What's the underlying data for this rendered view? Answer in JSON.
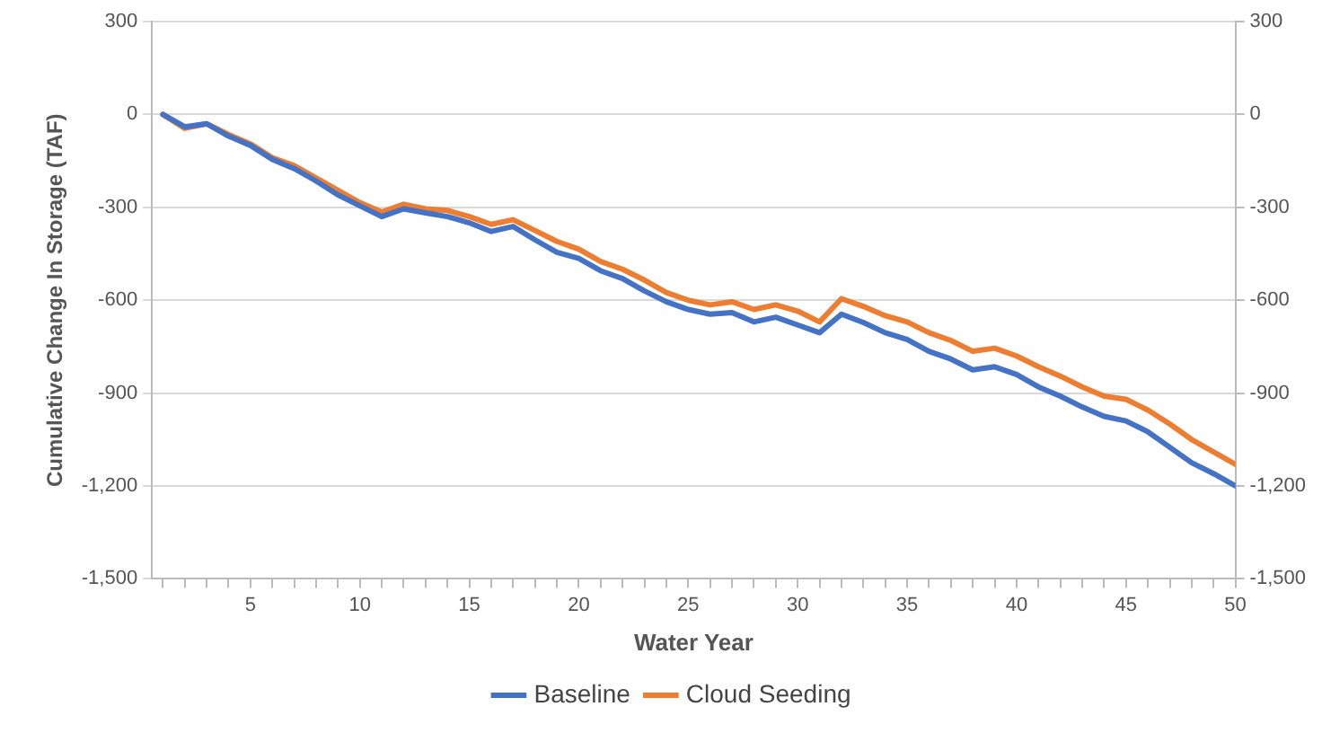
{
  "chart_data": {
    "type": "line",
    "xlabel": "Water Year",
    "ylabel": "Cumulative Change In Storage (TAF)",
    "x": [
      1,
      2,
      3,
      4,
      5,
      6,
      7,
      8,
      9,
      10,
      11,
      12,
      13,
      14,
      15,
      16,
      17,
      18,
      19,
      20,
      21,
      22,
      23,
      24,
      25,
      26,
      27,
      28,
      29,
      30,
      31,
      32,
      33,
      34,
      35,
      36,
      37,
      38,
      39,
      40,
      41,
      42,
      43,
      44,
      45,
      46,
      47,
      48,
      49,
      50
    ],
    "series": [
      {
        "name": "Baseline",
        "color": "#4472c4",
        "values": [
          0,
          -40,
          -30,
          -70,
          -100,
          -145,
          -175,
          -215,
          -260,
          -295,
          -330,
          -305,
          -318,
          -330,
          -350,
          -378,
          -362,
          -405,
          -445,
          -465,
          -505,
          -530,
          -570,
          -605,
          -630,
          -645,
          -640,
          -670,
          -655,
          -680,
          -705,
          -645,
          -672,
          -705,
          -727,
          -765,
          -790,
          -825,
          -815,
          -840,
          -880,
          -910,
          -945,
          -975,
          -990,
          -1025,
          -1075,
          -1125,
          -1160,
          -1200
        ]
      },
      {
        "name": "Cloud Seeding",
        "color": "#ed7d31",
        "values": [
          0,
          -45,
          -30,
          -65,
          -95,
          -140,
          -165,
          -205,
          -245,
          -285,
          -315,
          -290,
          -305,
          -310,
          -330,
          -355,
          -340,
          -375,
          -410,
          -435,
          -475,
          -500,
          -535,
          -575,
          -600,
          -615,
          -605,
          -630,
          -615,
          -635,
          -670,
          -595,
          -620,
          -650,
          -670,
          -705,
          -730,
          -765,
          -755,
          -780,
          -815,
          -845,
          -880,
          -910,
          -920,
          -955,
          -1000,
          -1050,
          -1090,
          -1130
        ]
      }
    ],
    "xlim": [
      0.5,
      50
    ],
    "xticks": [
      {
        "value": 1,
        "label": null
      },
      {
        "value": 2,
        "label": null
      },
      {
        "value": 3,
        "label": null
      },
      {
        "value": 4,
        "label": null
      },
      5,
      {
        "value": 6,
        "label": null
      },
      {
        "value": 7,
        "label": null
      },
      {
        "value": 8,
        "label": null
      },
      {
        "value": 9,
        "label": null
      },
      10,
      {
        "value": 11,
        "label": null
      },
      {
        "value": 12,
        "label": null
      },
      {
        "value": 13,
        "label": null
      },
      {
        "value": 14,
        "label": null
      },
      15,
      {
        "value": 16,
        "label": null
      },
      {
        "value": 17,
        "label": null
      },
      {
        "value": 18,
        "label": null
      },
      {
        "value": 19,
        "label": null
      },
      20,
      {
        "value": 21,
        "label": null
      },
      {
        "value": 22,
        "label": null
      },
      {
        "value": 23,
        "label": null
      },
      {
        "value": 24,
        "label": null
      },
      25,
      {
        "value": 26,
        "label": null
      },
      {
        "value": 27,
        "label": null
      },
      {
        "value": 28,
        "label": null
      },
      {
        "value": 29,
        "label": null
      },
      30,
      {
        "value": 31,
        "label": null
      },
      {
        "value": 32,
        "label": null
      },
      {
        "value": 33,
        "label": null
      },
      {
        "value": 34,
        "label": null
      },
      35,
      {
        "value": 36,
        "label": null
      },
      {
        "value": 37,
        "label": null
      },
      {
        "value": 38,
        "label": null
      },
      {
        "value": 39,
        "label": null
      },
      40,
      {
        "value": 41,
        "label": null
      },
      {
        "value": 42,
        "label": null
      },
      {
        "value": 43,
        "label": null
      },
      {
        "value": 44,
        "label": null
      },
      45,
      {
        "value": 46,
        "label": null
      },
      {
        "value": 47,
        "label": null
      },
      {
        "value": 48,
        "label": null
      },
      {
        "value": 49,
        "label": null
      },
      50
    ],
    "ylim": [
      -1500,
      300
    ],
    "yticks": [
      {
        "value": -1500,
        "label": "-1,500"
      },
      {
        "value": -1200,
        "label": "-1,200"
      },
      -900,
      -600,
      -300,
      0,
      300
    ],
    "y2lim": [
      -1500,
      300
    ],
    "y2ticks": [
      {
        "value": -1500,
        "label": "-1,500"
      },
      {
        "value": -1200,
        "label": "-1,200"
      },
      -900,
      -600,
      -300,
      0,
      300
    ],
    "grid": "y",
    "legend": "bottom",
    "marker": "none",
    "line_style": "solid"
  }
}
